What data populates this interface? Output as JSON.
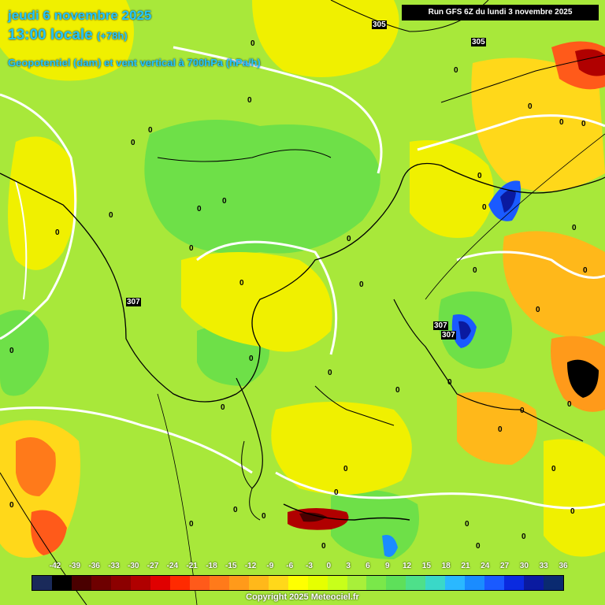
{
  "header": {
    "date_line": "jeudi 6 novembre 2025",
    "time_line": "13:00 locale",
    "lead_time": "(+78h)",
    "field_line": "Geopotentiel (dam) et vent vertical à 700hPa (hPa/h)"
  },
  "run_label": "Run GFS 6Z du lundi 3 novembre 2025",
  "copyright": "Copyright 2025 Meteociel.fr",
  "legend": {
    "ticks": [
      "-42",
      "-39",
      "-36",
      "-33",
      "-30",
      "-27",
      "-24",
      "-21",
      "-18",
      "-15",
      "-12",
      "-9",
      "-6",
      "-3",
      "0",
      "3",
      "6",
      "9",
      "12",
      "15",
      "18",
      "21",
      "24",
      "27",
      "30",
      "33",
      "36"
    ],
    "colors": [
      "#1a2a5a",
      "#000000",
      "#4a0000",
      "#6e0000",
      "#8c0000",
      "#b00000",
      "#e00000",
      "#ff2a00",
      "#ff5a1a",
      "#ff7a1a",
      "#ff9a1a",
      "#ffb81a",
      "#ffd81a",
      "#ffff00",
      "#e6ff00",
      "#c8ff1a",
      "#a8f03a",
      "#7ae84a",
      "#5ee05a",
      "#4ee08a",
      "#3ad8c8",
      "#2ab8ff",
      "#1a8cff",
      "#1a5aff",
      "#0a2ae0",
      "#0a1aa0",
      "#0a2a70"
    ]
  },
  "labels": {
    "geopotential": [
      "305",
      "305",
      "307",
      "307",
      "307"
    ],
    "zero": "0"
  }
}
